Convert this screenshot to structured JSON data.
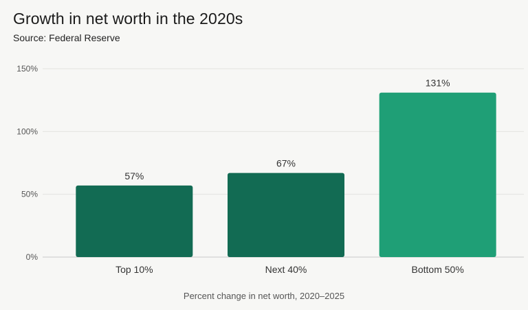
{
  "header": {
    "title": "Growth in net worth in the 2020s",
    "subtitle": "Source: Federal Reserve"
  },
  "chart_data": {
    "type": "bar",
    "title": "Growth in net worth in the 2020s",
    "subtitle": "Source: Federal Reserve",
    "categories": [
      "Top 10%",
      "Next 40%",
      "Bottom 50%"
    ],
    "values": [
      57,
      67,
      131
    ],
    "data_labels": [
      "57%",
      "67%",
      "131%"
    ],
    "bar_colors": [
      "#126b53",
      "#126b53",
      "#1f9f76"
    ],
    "xlabel": "Percent change in net worth, 2020–2025",
    "ylabel": "",
    "ylim": [
      0,
      150
    ],
    "yticks": [
      0,
      50,
      100,
      150
    ],
    "ytick_labels": [
      "0%",
      "50%",
      "100%",
      "150%"
    ],
    "grid": true
  }
}
